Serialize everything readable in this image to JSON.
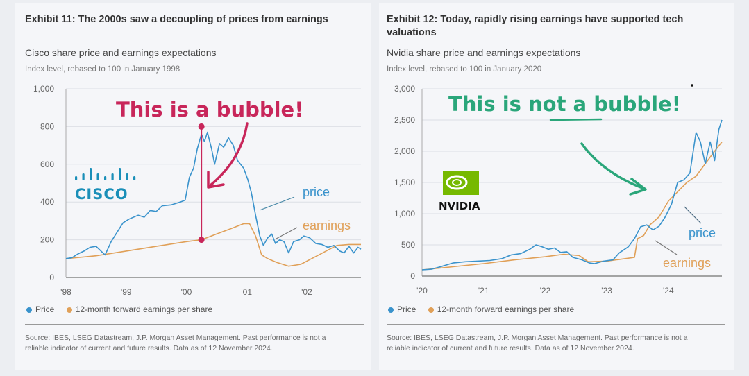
{
  "colors": {
    "price": "#3a93cc",
    "earnings": "#e0a058",
    "bubble": "#c8265a",
    "notbubble": "#2aa67a",
    "cisco": "#1a8fb8",
    "nvidia": "#76b900",
    "grid": "#dcdfe5",
    "axis": "#888888"
  },
  "legend": {
    "price": "Price",
    "earnings": "12-month forward earnings per share"
  },
  "chart_data": [
    {
      "type": "line",
      "title": "Exhibit 11: The 2000s saw a decoupling of prices from earnings",
      "subtitle": "Cisco share price and earnings expectations",
      "ylabel": "Index level, rebased to 100 in January 1998",
      "xlim": [
        1998,
        2002.9
      ],
      "ylim": [
        0,
        1000
      ],
      "yticks": [
        "1,000",
        "800",
        "600",
        "400",
        "200",
        "0"
      ],
      "ytick_values": [
        1000,
        800,
        600,
        400,
        200,
        0
      ],
      "xticks": [
        "'98",
        "'99",
        "'00",
        "'01",
        "'02"
      ],
      "xtick_values": [
        1998,
        1999,
        2000,
        2001,
        2002
      ],
      "grid": true,
      "series": [
        {
          "name": "Price",
          "label": "price",
          "points": [
            [
              1998.0,
              100
            ],
            [
              1998.1,
              105
            ],
            [
              1998.2,
              125
            ],
            [
              1998.3,
              140
            ],
            [
              1998.4,
              160
            ],
            [
              1998.5,
              165
            ],
            [
              1998.6,
              135
            ],
            [
              1998.65,
              120
            ],
            [
              1998.75,
              190
            ],
            [
              1998.85,
              240
            ],
            [
              1998.95,
              290
            ],
            [
              1999.05,
              310
            ],
            [
              1999.2,
              330
            ],
            [
              1999.3,
              320
            ],
            [
              1999.4,
              355
            ],
            [
              1999.5,
              350
            ],
            [
              1999.6,
              380
            ],
            [
              1999.75,
              385
            ],
            [
              1999.9,
              400
            ],
            [
              1999.98,
              410
            ],
            [
              2000.05,
              530
            ],
            [
              2000.12,
              580
            ],
            [
              2000.18,
              680
            ],
            [
              2000.25,
              760
            ],
            [
              2000.3,
              720
            ],
            [
              2000.35,
              770
            ],
            [
              2000.42,
              680
            ],
            [
              2000.47,
              600
            ],
            [
              2000.55,
              710
            ],
            [
              2000.62,
              690
            ],
            [
              2000.7,
              740
            ],
            [
              2000.78,
              700
            ],
            [
              2000.85,
              620
            ],
            [
              2000.95,
              580
            ],
            [
              2001.02,
              520
            ],
            [
              2001.08,
              450
            ],
            [
              2001.15,
              330
            ],
            [
              2001.22,
              220
            ],
            [
              2001.28,
              170
            ],
            [
              2001.35,
              210
            ],
            [
              2001.42,
              230
            ],
            [
              2001.48,
              180
            ],
            [
              2001.55,
              200
            ],
            [
              2001.62,
              190
            ],
            [
              2001.7,
              130
            ],
            [
              2001.78,
              190
            ],
            [
              2001.88,
              200
            ],
            [
              2001.95,
              220
            ],
            [
              2002.05,
              210
            ],
            [
              2002.15,
              180
            ],
            [
              2002.25,
              175
            ],
            [
              2002.35,
              160
            ],
            [
              2002.45,
              170
            ],
            [
              2002.55,
              140
            ],
            [
              2002.62,
              130
            ],
            [
              2002.7,
              165
            ],
            [
              2002.78,
              130
            ],
            [
              2002.85,
              160
            ],
            [
              2002.9,
              150
            ]
          ]
        },
        {
          "name": "12-month forward earnings per share",
          "label": "earnings",
          "points": [
            [
              1998.0,
              100
            ],
            [
              1998.5,
              115
            ],
            [
              1999.0,
              140
            ],
            [
              1999.5,
              165
            ],
            [
              2000.0,
              190
            ],
            [
              2000.25,
              200
            ],
            [
              2000.5,
              230
            ],
            [
              2000.75,
              260
            ],
            [
              2000.95,
              285
            ],
            [
              2001.05,
              285
            ],
            [
              2001.15,
              220
            ],
            [
              2001.25,
              120
            ],
            [
              2001.35,
              100
            ],
            [
              2001.5,
              80
            ],
            [
              2001.7,
              60
            ],
            [
              2001.9,
              70
            ],
            [
              2002.05,
              95
            ],
            [
              2002.2,
              120
            ],
            [
              2002.35,
              145
            ],
            [
              2002.5,
              170
            ],
            [
              2002.7,
              175
            ],
            [
              2002.9,
              175
            ]
          ]
        }
      ],
      "annotation": {
        "text": "This is a bubble!",
        "highlight_x": 2000.25,
        "highlight_range": [
          200,
          800
        ]
      },
      "logo": {
        "text": "CISCO"
      },
      "source": "Source: IBES, LSEG Datastream, J.P. Morgan Asset Management. Past performance is not a reliable indicator of current and future results. Data as of 12 November 2024."
    },
    {
      "type": "line",
      "title": "Exhibit 12: Today, rapidly rising earnings have supported tech valuations",
      "subtitle": "Nvidia share price and earnings expectations",
      "ylabel": "Index level, rebased to 100 in January 2020",
      "xlim": [
        2020,
        2024.87
      ],
      "ylim": [
        0,
        3000
      ],
      "yticks": [
        "3,000",
        "2,500",
        "2,000",
        "1,500",
        "1,000",
        "500",
        "0"
      ],
      "ytick_values": [
        3000,
        2500,
        2000,
        1500,
        1000,
        500,
        0
      ],
      "xticks": [
        "'20",
        "'21",
        "'22",
        "'23",
        "'24"
      ],
      "xtick_values": [
        2020,
        2021,
        2022,
        2023,
        2024
      ],
      "grid": true,
      "series": [
        {
          "name": "Price",
          "label": "price",
          "points": [
            [
              2020.0,
              100
            ],
            [
              2020.15,
              110
            ],
            [
              2020.3,
              150
            ],
            [
              2020.5,
              210
            ],
            [
              2020.7,
              230
            ],
            [
              2020.9,
              240
            ],
            [
              2021.1,
              250
            ],
            [
              2021.3,
              280
            ],
            [
              2021.45,
              340
            ],
            [
              2021.6,
              360
            ],
            [
              2021.75,
              430
            ],
            [
              2021.85,
              500
            ],
            [
              2021.95,
              470
            ],
            [
              2022.05,
              430
            ],
            [
              2022.15,
              450
            ],
            [
              2022.25,
              380
            ],
            [
              2022.35,
              390
            ],
            [
              2022.45,
              300
            ],
            [
              2022.6,
              260
            ],
            [
              2022.72,
              210
            ],
            [
              2022.8,
              200
            ],
            [
              2022.95,
              240
            ],
            [
              2023.1,
              260
            ],
            [
              2023.2,
              370
            ],
            [
              2023.35,
              470
            ],
            [
              2023.45,
              600
            ],
            [
              2023.55,
              790
            ],
            [
              2023.65,
              820
            ],
            [
              2023.75,
              740
            ],
            [
              2023.85,
              800
            ],
            [
              2023.95,
              950
            ],
            [
              2024.05,
              1150
            ],
            [
              2024.15,
              1500
            ],
            [
              2024.25,
              1540
            ],
            [
              2024.35,
              1650
            ],
            [
              2024.45,
              2300
            ],
            [
              2024.52,
              2150
            ],
            [
              2024.6,
              1800
            ],
            [
              2024.68,
              2150
            ],
            [
              2024.75,
              1850
            ],
            [
              2024.82,
              2350
            ],
            [
              2024.87,
              2500
            ]
          ]
        },
        {
          "name": "12-month forward earnings per share",
          "label": "earnings",
          "points": [
            [
              2020.0,
              100
            ],
            [
              2020.5,
              150
            ],
            [
              2021.0,
              200
            ],
            [
              2021.5,
              260
            ],
            [
              2022.0,
              310
            ],
            [
              2022.3,
              350
            ],
            [
              2022.55,
              330
            ],
            [
              2022.7,
              230
            ],
            [
              2023.0,
              240
            ],
            [
              2023.3,
              280
            ],
            [
              2023.45,
              300
            ],
            [
              2023.5,
              600
            ],
            [
              2023.6,
              650
            ],
            [
              2023.7,
              820
            ],
            [
              2023.85,
              950
            ],
            [
              2024.0,
              1200
            ],
            [
              2024.15,
              1350
            ],
            [
              2024.3,
              1500
            ],
            [
              2024.45,
              1600
            ],
            [
              2024.6,
              1800
            ],
            [
              2024.75,
              2000
            ],
            [
              2024.87,
              2150
            ]
          ]
        }
      ],
      "annotation": {
        "text": "This is not a bubble!",
        "underlined_word": "not"
      },
      "logo": {
        "text": "NVIDIA"
      },
      "source": "Source: IBES, LSEG Datastream, J.P. Morgan Asset Management. Past performance is not a reliable indicator of current and future results. Data as of 12 November 2024."
    }
  ]
}
